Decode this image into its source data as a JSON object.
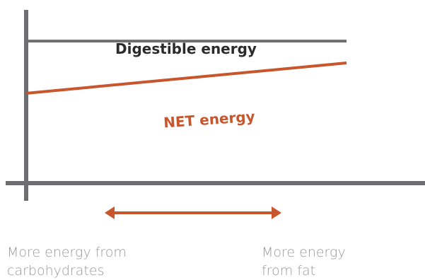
{
  "colors": {
    "axis": "#6e6e70",
    "digestible": "#6e6e70",
    "net": "#c8552b",
    "footer_text": "#9a9a9c",
    "label_dark": "#2b2b2b"
  },
  "chart_data": {
    "type": "line",
    "title": "",
    "xlabel": "",
    "ylabel": "",
    "grid": false,
    "x": [
      0,
      1
    ],
    "ylim": [
      0,
      1
    ],
    "series": [
      {
        "name": "Digestible energy",
        "values": [
          0.84,
          0.84
        ]
      },
      {
        "name": "NET energy",
        "values": [
          0.53,
          0.71
        ]
      }
    ],
    "x_range_arrow": {
      "direction": "both",
      "left_label": [
        "More energy from",
        "carbohydrates"
      ],
      "right_label": [
        "More energy",
        "from fat"
      ]
    }
  }
}
